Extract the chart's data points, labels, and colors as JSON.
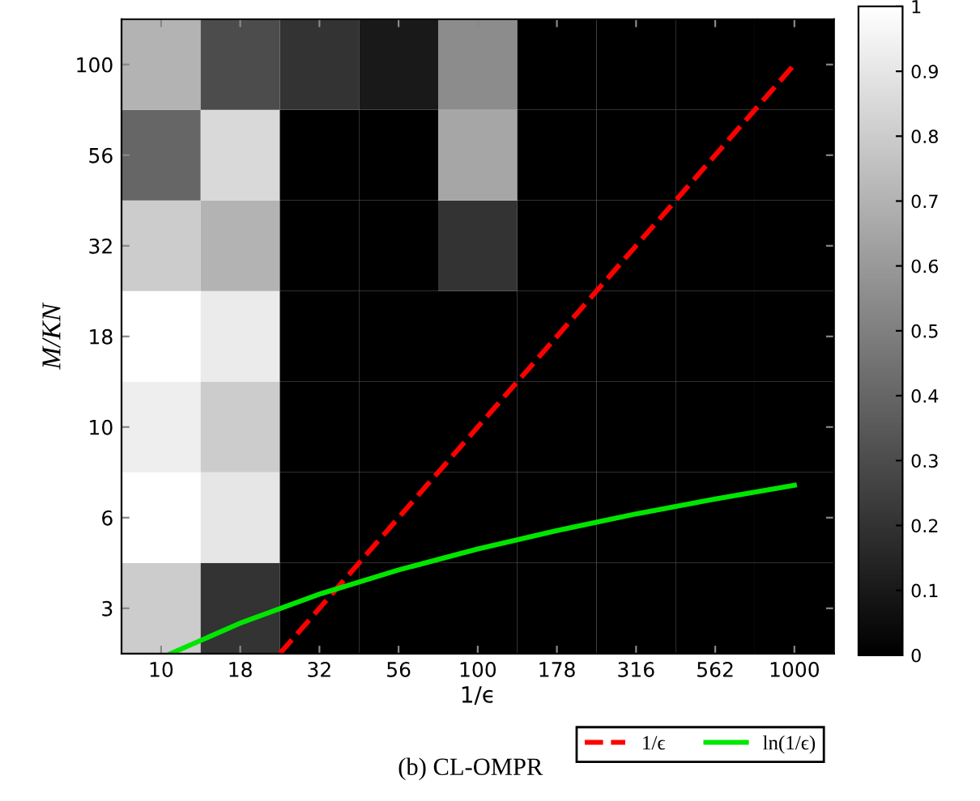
{
  "chart_data": {
    "type": "heatmap",
    "xlabel": "1/ϵ",
    "ylabel": "M/KN",
    "annotations": [
      "(b) CL-OMPR"
    ],
    "log": "xy",
    "grid": false,
    "legend": "bottom right",
    "xlim": [
      7.499,
      1333.5
    ],
    "ylim": [
      2.371,
      133.35
    ],
    "xticks": [
      10,
      {
        "value": 17.78,
        "label": "18"
      },
      {
        "value": 31.62,
        "label": "32"
      },
      {
        "value": 56.23,
        "label": "56"
      },
      100,
      {
        "value": 177.8,
        "label": "178"
      },
      {
        "value": 316.2,
        "label": "316"
      },
      {
        "value": 562.3,
        "label": "562"
      },
      1000
    ],
    "yticks": [
      {
        "value": 3.162,
        "label": "3"
      },
      {
        "value": 5.623,
        "label": "6"
      },
      10,
      {
        "value": 17.78,
        "label": "18"
      },
      {
        "value": 31.62,
        "label": "32"
      },
      {
        "value": 56.23,
        "label": "56"
      },
      100
    ],
    "cells": [
      [
        0.7,
        0.3,
        0.2,
        0.1,
        0.55,
        0,
        0,
        0,
        0
      ],
      [
        0.4,
        0.85,
        0,
        0,
        0.65,
        0,
        0,
        0,
        0
      ],
      [
        0.8,
        0.7,
        0,
        0,
        0.2,
        0,
        0,
        0,
        0
      ],
      [
        1.0,
        0.92,
        0,
        0,
        0,
        0,
        0,
        0,
        0
      ],
      [
        0.93,
        0.8,
        0,
        0,
        0,
        0,
        0,
        0,
        0
      ],
      [
        1.0,
        0.9,
        0,
        0,
        0,
        0,
        0,
        0,
        0
      ],
      [
        0.8,
        0.2,
        0,
        0,
        0,
        0,
        0,
        0,
        0
      ]
    ],
    "clim": [
      0,
      1
    ],
    "cticks": [
      0,
      0.1,
      0.2,
      0.3,
      0.4,
      0.5,
      0.6,
      0.7,
      0.8,
      0.9,
      1
    ],
    "series": [
      {
        "name": "1/ϵ",
        "type": "line",
        "color": "#ff0000",
        "line_style": "dashed",
        "x": [
          23.71,
          100,
          1000
        ],
        "values": [
          2.371,
          10,
          100
        ]
      },
      {
        "name": "ln(1/ϵ)",
        "type": "line",
        "color": "#00e600",
        "line_style": "solid",
        "x": [
          10.72,
          18,
          32,
          56,
          100,
          178,
          316,
          562,
          1000
        ],
        "values": [
          2.372,
          2.89,
          3.47,
          4.03,
          4.61,
          5.18,
          5.76,
          6.33,
          6.91
        ]
      }
    ]
  }
}
